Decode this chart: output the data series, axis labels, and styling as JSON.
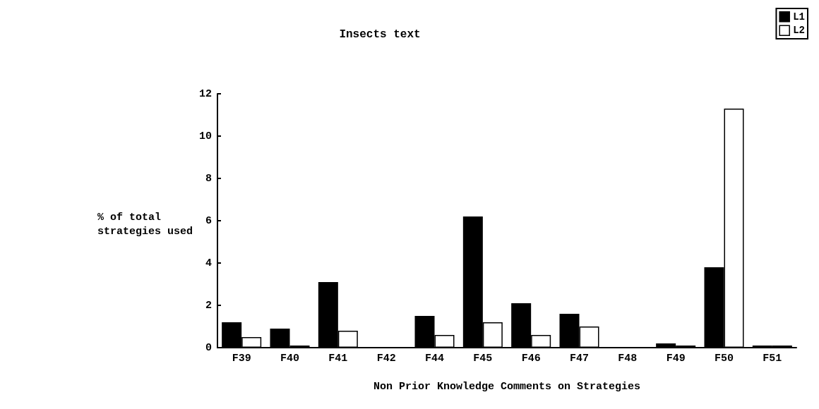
{
  "chart_data": {
    "type": "bar",
    "title": "Insects text",
    "xlabel": "Non Prior Knowledge Comments on Strategies",
    "ylabel": "% of total strategies used",
    "categories": [
      "F39",
      "F40",
      "F41",
      "F42",
      "F44",
      "F45",
      "F46",
      "F47",
      "F48",
      "F49",
      "F50",
      "F51"
    ],
    "series": [
      {
        "name": "L1",
        "color": "#000000",
        "values": [
          1.2,
          0.9,
          3.1,
          0,
          1.5,
          6.2,
          2.1,
          1.6,
          0,
          0.2,
          3.8,
          0.1
        ]
      },
      {
        "name": "L2",
        "color": "#ffffff",
        "values": [
          0.5,
          0.1,
          0.8,
          0,
          0.6,
          1.2,
          0.6,
          1.0,
          0,
          0.1,
          11.3,
          0.1
        ]
      }
    ],
    "ylim": [
      0,
      12
    ],
    "yticks": [
      0,
      2,
      4,
      6,
      8,
      10,
      12
    ],
    "grid": false,
    "legend": "top right"
  }
}
